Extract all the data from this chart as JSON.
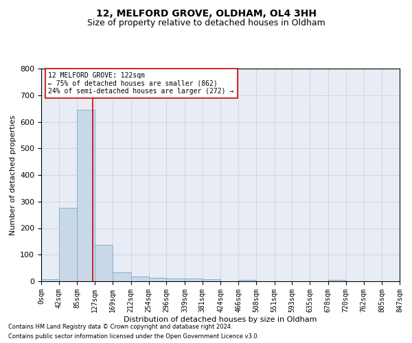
{
  "title1": "12, MELFORD GROVE, OLDHAM, OL4 3HH",
  "title2": "Size of property relative to detached houses in Oldham",
  "xlabel": "Distribution of detached houses by size in Oldham",
  "ylabel": "Number of detached properties",
  "bar_color": "#c8d8e8",
  "bar_edge_color": "#7baac8",
  "grid_color": "#c8ccd8",
  "background_color": "#e8ecf4",
  "bin_edges": [
    0,
    42,
    85,
    127,
    169,
    212,
    254,
    296,
    339,
    381,
    424,
    466,
    508,
    551,
    593,
    635,
    678,
    720,
    762,
    805,
    847
  ],
  "bar_heights": [
    8,
    275,
    645,
    138,
    33,
    18,
    12,
    10,
    10,
    9,
    0,
    6,
    0,
    0,
    0,
    0,
    6,
    0,
    0,
    0
  ],
  "property_size": 122,
  "vline_color": "#cc0000",
  "annotation_text": "12 MELFORD GROVE: 122sqm\n← 75% of detached houses are smaller (862)\n24% of semi-detached houses are larger (272) →",
  "annotation_box_color": "#ffffff",
  "annotation_box_edge": "#cc0000",
  "ylim": [
    0,
    800
  ],
  "yticks": [
    0,
    100,
    200,
    300,
    400,
    500,
    600,
    700,
    800
  ],
  "footer1": "Contains HM Land Registry data © Crown copyright and database right 2024.",
  "footer2": "Contains public sector information licensed under the Open Government Licence v3.0.",
  "title1_fontsize": 10,
  "title2_fontsize": 9,
  "tick_label_fontsize": 7,
  "ylabel_fontsize": 8,
  "xlabel_fontsize": 8,
  "annotation_fontsize": 7,
  "footer_fontsize": 6,
  "tick_labels": [
    "0sqm",
    "42sqm",
    "85sqm",
    "127sqm",
    "169sqm",
    "212sqm",
    "254sqm",
    "296sqm",
    "339sqm",
    "381sqm",
    "424sqm",
    "466sqm",
    "508sqm",
    "551sqm",
    "593sqm",
    "635sqm",
    "678sqm",
    "720sqm",
    "762sqm",
    "805sqm",
    "847sqm"
  ]
}
